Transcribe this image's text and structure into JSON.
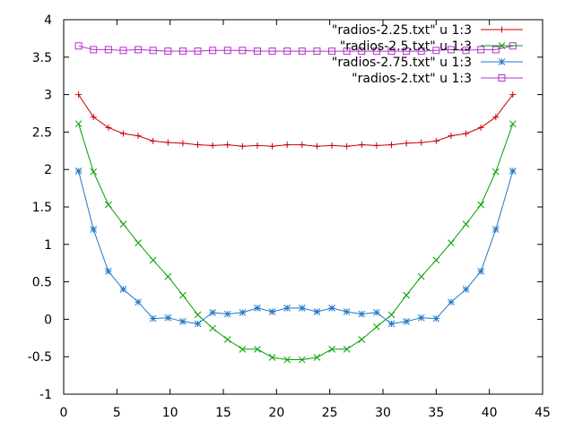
{
  "chart_data": {
    "type": "line",
    "title": "",
    "xlabel": "",
    "ylabel": "",
    "xlim": [
      0,
      45
    ],
    "ylim": [
      -1,
      4
    ],
    "xticks": [
      "0",
      "5",
      "10",
      "15",
      "20",
      "25",
      "30",
      "35",
      "40",
      "45"
    ],
    "yticks": [
      "-1",
      "-0.5",
      "0",
      "0.5",
      "1",
      "1.5",
      "2",
      "2.5",
      "3",
      "3.5",
      "4"
    ],
    "grid": false,
    "legend_position": "top-right",
    "x": [
      1.4,
      2.8,
      4.2,
      5.6,
      7.0,
      8.4,
      9.8,
      11.2,
      12.6,
      14.0,
      15.4,
      16.8,
      18.2,
      19.6,
      21.0,
      22.4,
      23.8,
      25.2,
      26.6,
      28.0,
      29.4,
      30.8,
      32.2,
      33.6,
      35.0,
      36.4,
      37.8,
      39.2,
      40.6,
      42.2
    ],
    "series": [
      {
        "name": "\"radios-2.25.txt\" u 1:3",
        "color": "#cc0000",
        "marker": "plus",
        "values": [
          3.0,
          2.7,
          2.56,
          2.48,
          2.45,
          2.38,
          2.36,
          2.35,
          2.33,
          2.32,
          2.33,
          2.31,
          2.32,
          2.31,
          2.33,
          2.33,
          2.31,
          2.32,
          2.31,
          2.33,
          2.32,
          2.33,
          2.35,
          2.36,
          2.38,
          2.45,
          2.48,
          2.56,
          2.7,
          3.0
        ]
      },
      {
        "name": "\"radios-2.5.txt\" u 1:3",
        "color": "#00a000",
        "marker": "cross",
        "values": [
          2.61,
          1.97,
          1.53,
          1.27,
          1.02,
          0.79,
          0.57,
          0.32,
          0.06,
          -0.12,
          -0.27,
          -0.4,
          -0.4,
          -0.51,
          -0.54,
          -0.54,
          -0.51,
          -0.4,
          -0.4,
          -0.27,
          -0.1,
          0.06,
          0.32,
          0.57,
          0.79,
          1.02,
          1.27,
          1.53,
          1.97,
          2.61
        ]
      },
      {
        "name": "\"radios-2.75.txt\" u 1:3",
        "color": "#1e78c8",
        "marker": "star",
        "values": [
          1.98,
          1.2,
          0.64,
          0.4,
          0.23,
          0.01,
          0.02,
          -0.03,
          -0.06,
          0.09,
          0.07,
          0.09,
          0.15,
          0.1,
          0.15,
          0.15,
          0.1,
          0.15,
          0.1,
          0.07,
          0.09,
          -0.06,
          -0.03,
          0.02,
          0.01,
          0.23,
          0.4,
          0.64,
          1.2,
          1.98
        ]
      },
      {
        "name": "\"radios-2.txt\" u 1:3",
        "color": "#b030c8",
        "marker": "box",
        "values": [
          3.65,
          3.6,
          3.6,
          3.59,
          3.6,
          3.59,
          3.58,
          3.58,
          3.58,
          3.59,
          3.59,
          3.59,
          3.58,
          3.58,
          3.58,
          3.58,
          3.58,
          3.58,
          3.58,
          3.58,
          3.58,
          3.58,
          3.58,
          3.58,
          3.59,
          3.6,
          3.59,
          3.6,
          3.6,
          3.65
        ]
      }
    ]
  }
}
